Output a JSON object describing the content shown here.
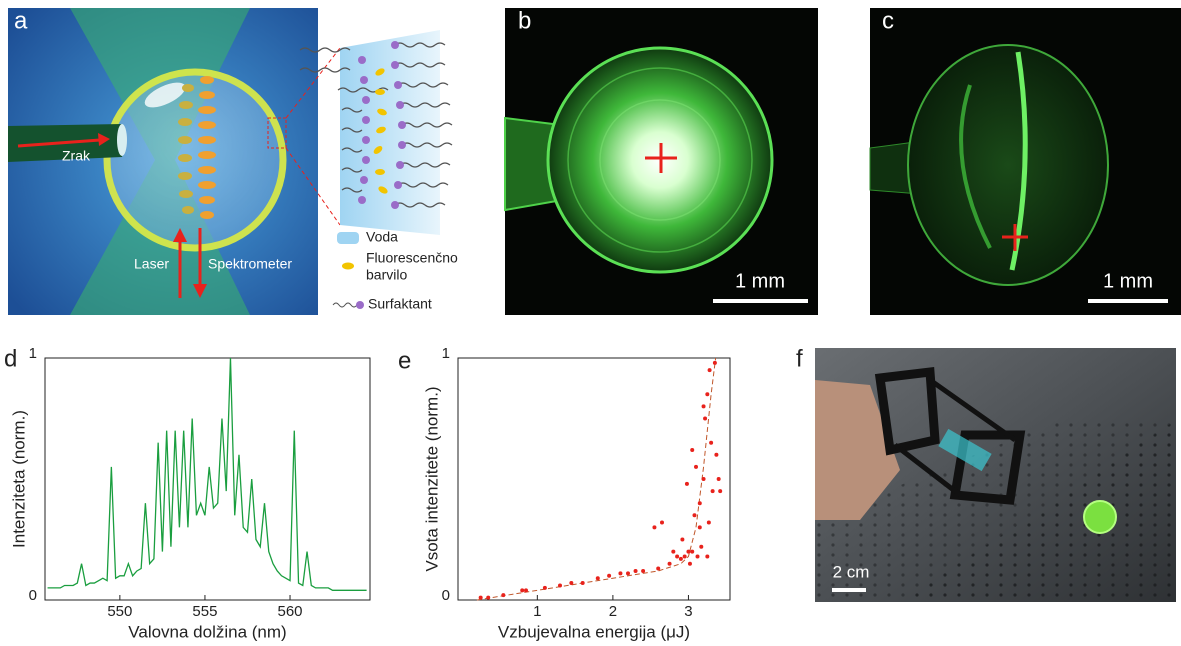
{
  "panels": {
    "a": {
      "label": "a",
      "air": "Zrak",
      "laser": "Laser",
      "spectrometer": "Spektrometer",
      "legend": [
        "Voda",
        "Fluorescenčno",
        "barvilo",
        "Surfaktant"
      ]
    },
    "b": {
      "label": "b",
      "scale": "1 mm"
    },
    "c": {
      "label": "c",
      "scale": "1 mm"
    },
    "d": {
      "label": "d"
    },
    "e": {
      "label": "e"
    },
    "f": {
      "label": "f",
      "scale": "2 cm"
    }
  },
  "chart_data": [
    {
      "type": "line",
      "x_label": "Valovna dolžina (nm)",
      "y_label": "Intenziteta (norm.)",
      "color": "#1a9e3f",
      "x": [
        545.75,
        546,
        546.25,
        546.5,
        546.75,
        547,
        547.25,
        547.5,
        547.75,
        548,
        548.25,
        548.5,
        548.75,
        549,
        549.25,
        549.5,
        549.75,
        550,
        550.25,
        550.5,
        550.75,
        551,
        551.25,
        551.5,
        551.75,
        552,
        552.25,
        552.5,
        552.75,
        553,
        553.25,
        553.5,
        553.75,
        554,
        554.25,
        554.5,
        554.75,
        555,
        555.25,
        555.5,
        555.75,
        556,
        556.25,
        556.5,
        556.75,
        557,
        557.25,
        557.5,
        557.75,
        558,
        558.25,
        558.5,
        558.75,
        559,
        559.25,
        559.5,
        559.75,
        560,
        560.25,
        560.5,
        560.75,
        561,
        561.25,
        561.5,
        561.75,
        562,
        562.25,
        562.5,
        562.75,
        563,
        563.25,
        563.5,
        563.75,
        564,
        564.25,
        564.5
      ],
      "values": [
        0.05,
        0.05,
        0.05,
        0.05,
        0.06,
        0.06,
        0.06,
        0.07,
        0.15,
        0.06,
        0.07,
        0.07,
        0.08,
        0.09,
        0.08,
        0.55,
        0.09,
        0.1,
        0.1,
        0.15,
        0.1,
        0.12,
        0.13,
        0.4,
        0.15,
        0.17,
        0.65,
        0.2,
        0.7,
        0.22,
        0.7,
        0.3,
        0.7,
        0.3,
        0.75,
        0.35,
        0.4,
        0.35,
        0.55,
        0.38,
        0.4,
        0.75,
        0.45,
        1.0,
        0.35,
        0.6,
        0.3,
        0.28,
        0.5,
        0.25,
        0.22,
        0.4,
        0.2,
        0.15,
        0.12,
        0.1,
        0.09,
        0.08,
        0.7,
        0.07,
        0.06,
        0.2,
        0.06,
        0.05,
        0.05,
        0.05,
        0.05,
        0.04,
        0.04,
        0.04,
        0.04,
        0.04,
        0.04,
        0.04,
        0.04,
        0.04
      ],
      "xlim": [
        545.6,
        564.7
      ],
      "ylim": [
        0,
        1
      ],
      "xticks": [
        550,
        555,
        560
      ],
      "yticks": [
        0,
        1
      ]
    },
    {
      "type": "scatter",
      "x_label": "Vzbujevalna energija (μJ)",
      "y_label": "Vsota intenzitete (norm.)",
      "color": "#e8221c",
      "x": [
        0.25,
        0.35,
        0.55,
        0.8,
        0.85,
        1.1,
        1.3,
        1.45,
        1.6,
        1.8,
        1.95,
        2.1,
        2.2,
        2.3,
        2.4,
        2.55,
        2.6,
        2.65,
        2.75,
        2.8,
        2.85,
        2.9,
        2.92,
        2.95,
        2.98,
        3.0,
        3.02,
        3.05,
        3.08,
        3.1,
        3.12,
        3.15,
        3.17,
        3.2,
        3.22,
        3.25,
        3.27,
        3.28,
        3.3,
        3.32,
        3.35,
        3.37,
        3.4,
        3.42,
        3.2,
        3.05,
        3.15,
        3.25
      ],
      "values": [
        0.01,
        0.01,
        0.02,
        0.04,
        0.04,
        0.05,
        0.06,
        0.07,
        0.07,
        0.09,
        0.1,
        0.11,
        0.11,
        0.12,
        0.12,
        0.3,
        0.13,
        0.32,
        0.15,
        0.2,
        0.18,
        0.17,
        0.25,
        0.18,
        0.48,
        0.2,
        0.15,
        0.2,
        0.35,
        0.55,
        0.18,
        0.4,
        0.22,
        0.5,
        0.75,
        0.85,
        0.32,
        0.95,
        0.65,
        0.45,
        0.98,
        0.6,
        0.5,
        0.45,
        0.8,
        0.62,
        0.3,
        0.18
      ],
      "fit": {
        "x": [
          0.2,
          1.0,
          2.0,
          2.6,
          2.9,
          3.0,
          3.1,
          3.2,
          3.3,
          3.36
        ],
        "values": [
          0.0,
          0.04,
          0.09,
          0.12,
          0.15,
          0.18,
          0.3,
          0.55,
          0.85,
          1.0
        ],
        "color": "#c0562a"
      },
      "xlim": [
        -0.05,
        3.55
      ],
      "ylim": [
        0,
        1
      ],
      "xticks": [
        1,
        2,
        3
      ],
      "yticks": [
        0,
        1
      ]
    }
  ]
}
